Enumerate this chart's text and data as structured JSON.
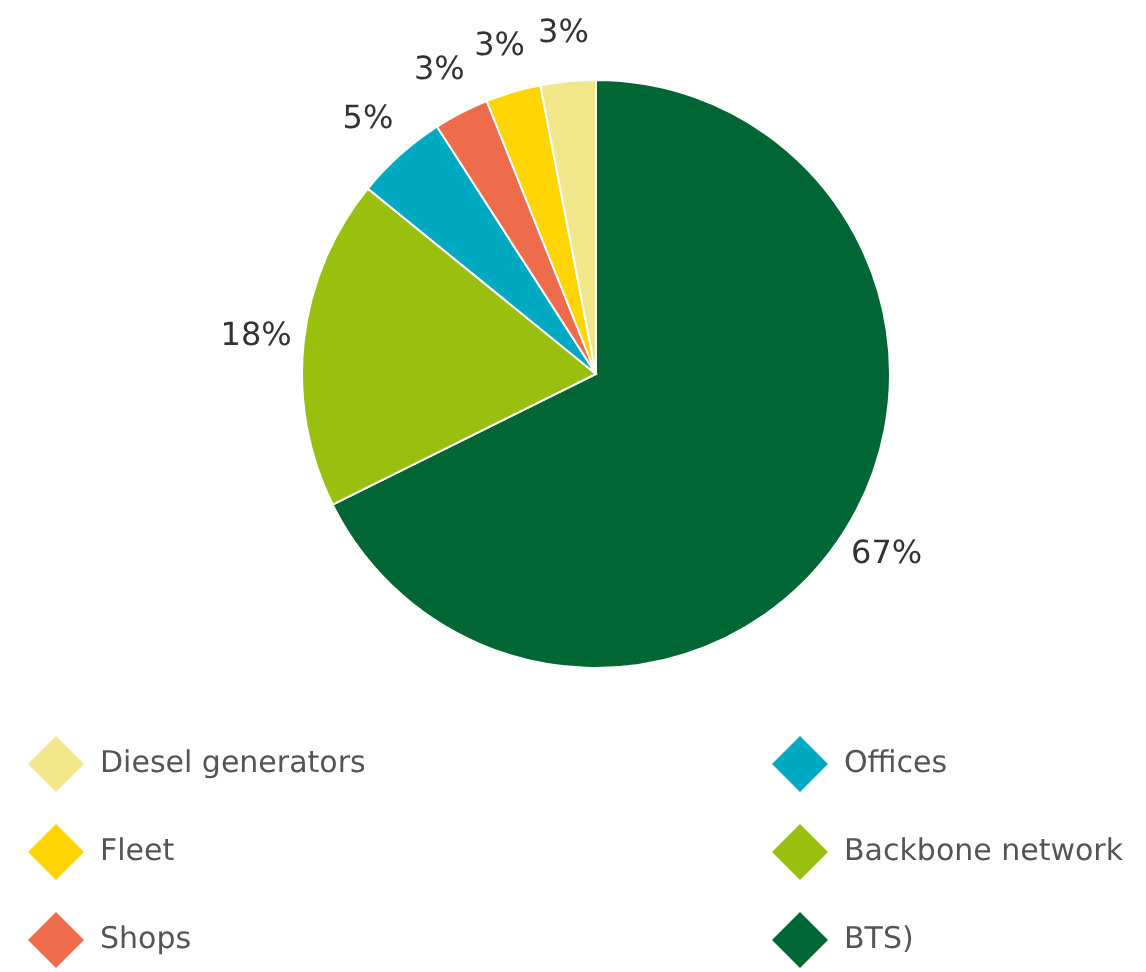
{
  "chart_data": {
    "type": "pie",
    "categories": [
      "BTS)",
      "Backbone network",
      "Offices",
      "Shops",
      "Fleet",
      "Diesel generators"
    ],
    "values": [
      67,
      18,
      5,
      3,
      3,
      3
    ],
    "colors": [
      "#006633",
      "#99bf0f",
      "#00a9c2",
      "#ee6b4b",
      "#ffd500",
      "#f2e68a"
    ],
    "value_labels": [
      "67%",
      "18%",
      "5%",
      "3%",
      "3%",
      "3%"
    ],
    "legend": "bottom"
  }
}
